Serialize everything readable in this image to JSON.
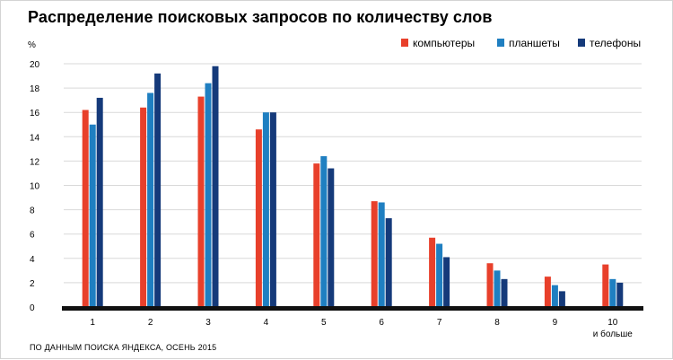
{
  "chart_data": {
    "type": "bar",
    "title": "Распределение поисковых запросов по количеству слов",
    "ylabel": "%",
    "xlabel": "",
    "ylim": [
      0,
      20
    ],
    "yticks": [
      0,
      2,
      4,
      6,
      8,
      10,
      12,
      14,
      16,
      18,
      20
    ],
    "grid": true,
    "legend_position": "top-right",
    "categories": [
      "1",
      "2",
      "3",
      "4",
      "5",
      "6",
      "7",
      "8",
      "9",
      "10"
    ],
    "category_sublabels": [
      "",
      "",
      "",
      "",
      "",
      "",
      "",
      "",
      "",
      "и больше"
    ],
    "series": [
      {
        "name": "компьютеры",
        "color": "#e8402b",
        "values": [
          16.2,
          16.4,
          17.3,
          14.6,
          11.8,
          8.7,
          5.7,
          3.6,
          2.5,
          3.5
        ]
      },
      {
        "name": "планшеты",
        "color": "#1f7fc1",
        "values": [
          15.0,
          17.6,
          18.4,
          16.0,
          12.4,
          8.6,
          5.2,
          3.0,
          1.8,
          2.3
        ]
      },
      {
        "name": "телефоны",
        "color": "#153a7a",
        "values": [
          17.2,
          19.2,
          19.8,
          16.0,
          11.4,
          7.3,
          4.1,
          2.3,
          1.3,
          2.0
        ]
      }
    ],
    "source": "ПО ДАННЫМ ПОИСКА ЯНДЕКСА, ОСЕНЬ 2015"
  }
}
